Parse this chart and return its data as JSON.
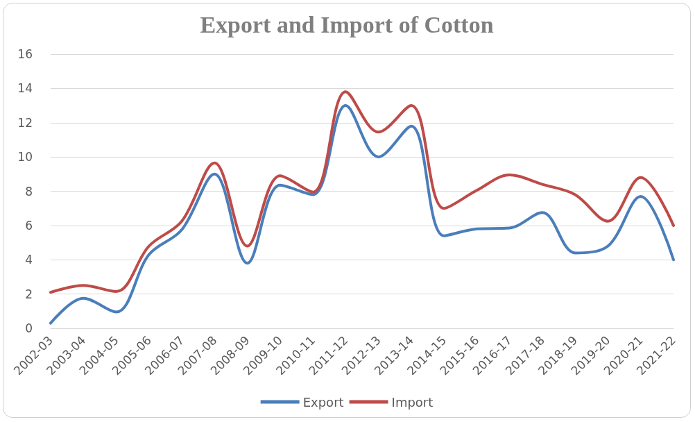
{
  "chart_data": {
    "type": "line",
    "title": "Export and Import of Cotton",
    "categories": [
      "2002-03",
      "2003-04",
      "2004-05",
      "2005-06",
      "2006-07",
      "2007-08",
      "2008-09",
      "2009-10",
      "2010-11",
      "2011-12",
      "2012-13",
      "2013-14",
      "2014-15",
      "2015-16",
      "2016-17",
      "2017-18",
      "2018-19",
      "2019-20",
      "2020-21",
      "2021-22"
    ],
    "series": [
      {
        "name": "Export",
        "color": "#4a7ebb",
        "values": [
          0.3,
          1.75,
          0.95,
          4.3,
          5.75,
          9.0,
          3.8,
          8.35,
          7.8,
          13.0,
          10.0,
          11.8,
          5.4,
          5.8,
          5.85,
          6.75,
          4.4,
          4.8,
          7.7,
          4.0
        ]
      },
      {
        "name": "Import",
        "color": "#be4b48",
        "values": [
          2.1,
          2.5,
          2.15,
          4.8,
          6.25,
          9.65,
          4.8,
          8.9,
          7.95,
          13.8,
          11.45,
          13.0,
          7.0,
          8.05,
          8.95,
          8.4,
          7.8,
          6.25,
          8.8,
          6.0
        ]
      }
    ],
    "ylim": [
      0,
      16
    ],
    "yticks": [
      0,
      2,
      4,
      6,
      8,
      10,
      12,
      14,
      16
    ],
    "grid": "y",
    "legend": "bottom",
    "marker": "none",
    "line_style": "solid"
  }
}
